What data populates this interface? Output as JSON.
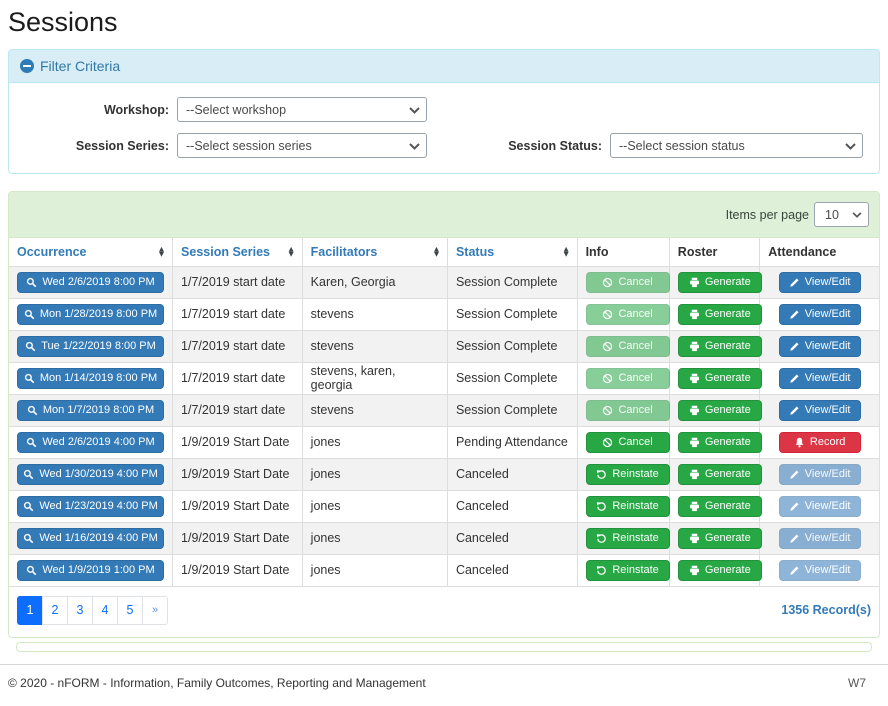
{
  "page": {
    "title": "Sessions",
    "footer": {
      "copyright": "© 2020 - nFORM - Information, Family Outcomes, Reporting and Management",
      "environment": "W7"
    }
  },
  "filter_panel": {
    "title": "Filter Criteria",
    "workshop_label": "Workshop:",
    "workshop_value": "--Select workshop",
    "session_series_label": "Session Series:",
    "session_series_value": "--Select session series",
    "session_status_label": "Session Status:",
    "session_status_value": "--Select session status"
  },
  "sessions_panel": {
    "items_per_page_label": "Items per page",
    "items_per_page_value": "10",
    "columns": [
      {
        "label": "Occurrence",
        "sortable": true
      },
      {
        "label": "Session Series",
        "sortable": true
      },
      {
        "label": "Facilitators",
        "sortable": true
      },
      {
        "label": "Status",
        "sortable": true
      },
      {
        "label": "Info",
        "sortable": false
      },
      {
        "label": "Roster",
        "sortable": false
      },
      {
        "label": "Attendance",
        "sortable": false
      }
    ],
    "rows": [
      {
        "occurrence": "Wed 2/6/2019 8:00 PM",
        "session_series": "1/7/2019 start date",
        "facilitators": "Karen, Georgia",
        "status": "Session Complete",
        "info": {
          "label": "Cancel",
          "icon": "ban-icon",
          "variant": "success",
          "disabled": true
        },
        "roster": {
          "label": "Generate",
          "icon": "printer-icon",
          "variant": "success",
          "disabled": false
        },
        "attendance": {
          "label": "View/Edit",
          "icon": "pencil-icon",
          "variant": "primary",
          "disabled": false
        }
      },
      {
        "occurrence": "Mon 1/28/2019 8:00 PM",
        "session_series": "1/7/2019 start date",
        "facilitators": "stevens",
        "status": "Session Complete",
        "info": {
          "label": "Cancel",
          "icon": "ban-icon",
          "variant": "success",
          "disabled": true
        },
        "roster": {
          "label": "Generate",
          "icon": "printer-icon",
          "variant": "success",
          "disabled": false
        },
        "attendance": {
          "label": "View/Edit",
          "icon": "pencil-icon",
          "variant": "primary",
          "disabled": false
        }
      },
      {
        "occurrence": "Tue 1/22/2019 8:00 PM",
        "session_series": "1/7/2019 start date",
        "facilitators": "stevens",
        "status": "Session Complete",
        "info": {
          "label": "Cancel",
          "icon": "ban-icon",
          "variant": "success",
          "disabled": true
        },
        "roster": {
          "label": "Generate",
          "icon": "printer-icon",
          "variant": "success",
          "disabled": false
        },
        "attendance": {
          "label": "View/Edit",
          "icon": "pencil-icon",
          "variant": "primary",
          "disabled": false
        }
      },
      {
        "occurrence": "Mon 1/14/2019 8:00 PM",
        "session_series": "1/7/2019 start date",
        "facilitators": "stevens, karen, georgia",
        "status": "Session Complete",
        "info": {
          "label": "Cancel",
          "icon": "ban-icon",
          "variant": "success",
          "disabled": true
        },
        "roster": {
          "label": "Generate",
          "icon": "printer-icon",
          "variant": "success",
          "disabled": false
        },
        "attendance": {
          "label": "View/Edit",
          "icon": "pencil-icon",
          "variant": "primary",
          "disabled": false
        }
      },
      {
        "occurrence": "Mon 1/7/2019 8:00 PM",
        "session_series": "1/7/2019 start date",
        "facilitators": "stevens",
        "status": "Session Complete",
        "info": {
          "label": "Cancel",
          "icon": "ban-icon",
          "variant": "success",
          "disabled": true
        },
        "roster": {
          "label": "Generate",
          "icon": "printer-icon",
          "variant": "success",
          "disabled": false
        },
        "attendance": {
          "label": "View/Edit",
          "icon": "pencil-icon",
          "variant": "primary",
          "disabled": false
        }
      },
      {
        "occurrence": "Wed 2/6/2019 4:00 PM",
        "session_series": "1/9/2019 Start Date",
        "facilitators": "jones",
        "status": "Pending Attendance",
        "info": {
          "label": "Cancel",
          "icon": "ban-icon",
          "variant": "success",
          "disabled": false
        },
        "roster": {
          "label": "Generate",
          "icon": "printer-icon",
          "variant": "success",
          "disabled": false
        },
        "attendance": {
          "label": "Record",
          "icon": "bell-icon",
          "variant": "danger",
          "disabled": false
        }
      },
      {
        "occurrence": "Wed 1/30/2019 4:00 PM",
        "session_series": "1/9/2019 Start Date",
        "facilitators": "jones",
        "status": "Canceled",
        "info": {
          "label": "Reinstate",
          "icon": "undo-icon",
          "variant": "success",
          "disabled": false
        },
        "roster": {
          "label": "Generate",
          "icon": "printer-icon",
          "variant": "success",
          "disabled": false
        },
        "attendance": {
          "label": "View/Edit",
          "icon": "pencil-icon",
          "variant": "primary",
          "disabled": true
        }
      },
      {
        "occurrence": "Wed 1/23/2019 4:00 PM",
        "session_series": "1/9/2019 Start Date",
        "facilitators": "jones",
        "status": "Canceled",
        "info": {
          "label": "Reinstate",
          "icon": "undo-icon",
          "variant": "success",
          "disabled": false
        },
        "roster": {
          "label": "Generate",
          "icon": "printer-icon",
          "variant": "success",
          "disabled": false
        },
        "attendance": {
          "label": "View/Edit",
          "icon": "pencil-icon",
          "variant": "primary",
          "disabled": true
        }
      },
      {
        "occurrence": "Wed 1/16/2019 4:00 PM",
        "session_series": "1/9/2019 Start Date",
        "facilitators": "jones",
        "status": "Canceled",
        "info": {
          "label": "Reinstate",
          "icon": "undo-icon",
          "variant": "success",
          "disabled": false
        },
        "roster": {
          "label": "Generate",
          "icon": "printer-icon",
          "variant": "success",
          "disabled": false
        },
        "attendance": {
          "label": "View/Edit",
          "icon": "pencil-icon",
          "variant": "primary",
          "disabled": true
        }
      },
      {
        "occurrence": "Wed 1/9/2019 1:00 PM",
        "session_series": "1/9/2019 Start Date",
        "facilitators": "jones",
        "status": "Canceled",
        "info": {
          "label": "Reinstate",
          "icon": "undo-icon",
          "variant": "success",
          "disabled": false
        },
        "roster": {
          "label": "Generate",
          "icon": "printer-icon",
          "variant": "success",
          "disabled": false
        },
        "attendance": {
          "label": "View/Edit",
          "icon": "pencil-icon",
          "variant": "primary",
          "disabled": true
        }
      }
    ],
    "pagination": {
      "pages": [
        "1",
        "2",
        "3",
        "4",
        "5"
      ],
      "active": "1",
      "next": "»"
    },
    "record_count": "1356 Record(s)"
  },
  "colors": {
    "primary_blue": "#337ab7",
    "button_green": "#28a745",
    "button_red": "#dc3545",
    "info_heading_bg": "#d9edf7",
    "info_border": "#bce8f1",
    "success_heading_bg": "#dff0d8",
    "success_border": "#d6e9c6",
    "pagination_active": "#0d6efd",
    "zebra_row": "#f2f2f2"
  }
}
